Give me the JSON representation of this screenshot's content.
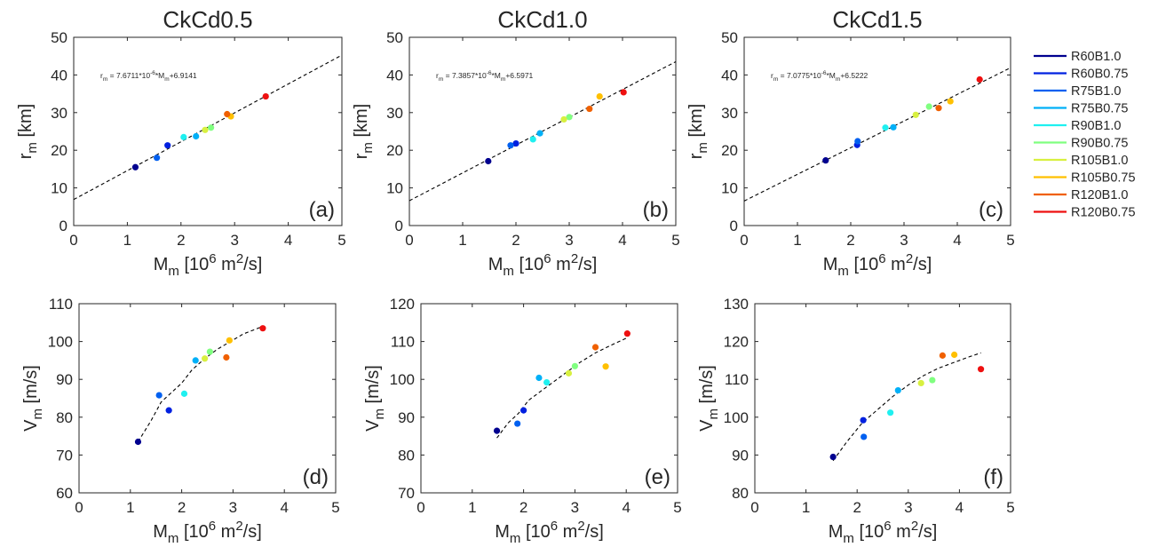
{
  "colors": {
    "R60B1.0": "#00008f",
    "R60B0.75": "#0020e0",
    "R75B1.0": "#0060f0",
    "R75B0.75": "#00b0f8",
    "R90B1.0": "#1ff0f0",
    "R90B0.75": "#80ff80",
    "R105B1.0": "#d8f040",
    "R105B0.75": "#ffc000",
    "R120B1.0": "#f06000",
    "R120B0.75": "#ee1010"
  },
  "legend": [
    "R60B1.0",
    "R60B0.75",
    "R75B1.0",
    "R75B0.75",
    "R90B1.0",
    "R90B0.75",
    "R105B1.0",
    "R105B0.75",
    "R120B1.0",
    "R120B0.75"
  ],
  "chart_data": [
    {
      "type": "scatter",
      "panel": "a",
      "title": "CkCd0.5",
      "panel_label": "(a)",
      "xlabel": "M_m [10^6 m^2/s]",
      "ylabel": "r_m [km]",
      "xlim": [
        0,
        5
      ],
      "ylim": [
        0,
        50
      ],
      "xticks": [
        0,
        1,
        2,
        3,
        4,
        5
      ],
      "yticks": [
        0,
        10,
        20,
        30,
        40,
        50
      ],
      "fit": {
        "slope": 7.6711,
        "intercept": 6.9141,
        "x_range": [
          0,
          5
        ],
        "label_base": "r",
        "label_sub": "m",
        "label_mid": " = 7.6711*10",
        "label_sup": "-6",
        "label_mid2": "*M",
        "label_sub2": "m",
        "label_end": "+6.9141"
      },
      "points": [
        {
          "series": "R60B1.0",
          "x": 1.15,
          "y": 15.5
        },
        {
          "series": "R60B0.75",
          "x": 1.75,
          "y": 21.3
        },
        {
          "series": "R75B1.0",
          "x": 1.55,
          "y": 18.0
        },
        {
          "series": "R75B0.75",
          "x": 2.28,
          "y": 23.7
        },
        {
          "series": "R90B1.0",
          "x": 2.05,
          "y": 23.5
        },
        {
          "series": "R90B0.75",
          "x": 2.56,
          "y": 26.0
        },
        {
          "series": "R105B1.0",
          "x": 2.45,
          "y": 25.4
        },
        {
          "series": "R105B0.75",
          "x": 2.93,
          "y": 29.0
        },
        {
          "series": "R120B1.0",
          "x": 2.86,
          "y": 29.6
        },
        {
          "series": "R120B0.75",
          "x": 3.58,
          "y": 34.3
        }
      ]
    },
    {
      "type": "scatter",
      "panel": "b",
      "title": "CkCd1.0",
      "panel_label": "(b)",
      "xlabel": "M_m [10^6 m^2/s]",
      "ylabel": "r_m [km]",
      "xlim": [
        0,
        5
      ],
      "ylim": [
        0,
        50
      ],
      "xticks": [
        0,
        1,
        2,
        3,
        4,
        5
      ],
      "yticks": [
        0,
        10,
        20,
        30,
        40,
        50
      ],
      "fit": {
        "slope": 7.3857,
        "intercept": 6.5971,
        "x_range": [
          0,
          5
        ],
        "label_base": "r",
        "label_sub": "m",
        "label_mid": " = 7.3857*10",
        "label_sup": "-6",
        "label_mid2": "*M",
        "label_sub2": "m",
        "label_end": "+6.5971"
      },
      "points": [
        {
          "series": "R60B1.0",
          "x": 1.48,
          "y": 17.1
        },
        {
          "series": "R60B0.75",
          "x": 2.0,
          "y": 21.8
        },
        {
          "series": "R75B1.0",
          "x": 1.9,
          "y": 21.3
        },
        {
          "series": "R75B0.75",
          "x": 2.45,
          "y": 24.5
        },
        {
          "series": "R90B1.0",
          "x": 2.32,
          "y": 22.9
        },
        {
          "series": "R90B0.75",
          "x": 3.0,
          "y": 28.8
        },
        {
          "series": "R105B1.0",
          "x": 2.9,
          "y": 28.2
        },
        {
          "series": "R105B0.75",
          "x": 3.57,
          "y": 34.3
        },
        {
          "series": "R120B1.0",
          "x": 3.38,
          "y": 31.0
        },
        {
          "series": "R120B0.75",
          "x": 4.02,
          "y": 35.4
        }
      ]
    },
    {
      "type": "scatter",
      "panel": "c",
      "title": "CkCd1.5",
      "panel_label": "(c)",
      "xlabel": "M_m [10^6 m^2/s]",
      "ylabel": "r_m [km]",
      "xlim": [
        0,
        5
      ],
      "ylim": [
        0,
        50
      ],
      "xticks": [
        0,
        1,
        2,
        3,
        4,
        5
      ],
      "yticks": [
        0,
        10,
        20,
        30,
        40,
        50
      ],
      "fit": {
        "slope": 7.0775,
        "intercept": 6.5222,
        "x_range": [
          0,
          5
        ],
        "label_base": "r",
        "label_sub": "m",
        "label_mid": " = 7.0775*10",
        "label_sup": "-6",
        "label_mid2": "*M",
        "label_sub2": "m",
        "label_end": "+6.5222"
      },
      "points": [
        {
          "series": "R60B1.0",
          "x": 1.53,
          "y": 17.3
        },
        {
          "series": "R60B0.75",
          "x": 2.12,
          "y": 21.4
        },
        {
          "series": "R75B1.0",
          "x": 2.13,
          "y": 22.4
        },
        {
          "series": "R75B0.75",
          "x": 2.8,
          "y": 26.1
        },
        {
          "series": "R90B1.0",
          "x": 2.65,
          "y": 26.0
        },
        {
          "series": "R90B0.75",
          "x": 3.47,
          "y": 31.6
        },
        {
          "series": "R105B1.0",
          "x": 3.22,
          "y": 29.4
        },
        {
          "series": "R105B0.75",
          "x": 3.87,
          "y": 33.0
        },
        {
          "series": "R120B1.0",
          "x": 3.65,
          "y": 31.2
        },
        {
          "series": "R120B0.75",
          "x": 4.42,
          "y": 38.8
        }
      ]
    },
    {
      "type": "scatter",
      "panel": "d",
      "panel_label": "(d)",
      "xlabel": "M_m [10^6 m^2/s]",
      "ylabel": "V_m [m/s]",
      "xlim": [
        0,
        5
      ],
      "ylim": [
        60,
        110
      ],
      "xticks": [
        0,
        1,
        2,
        3,
        4,
        5
      ],
      "yticks": [
        60,
        70,
        80,
        90,
        100,
        110
      ],
      "curve": {
        "x": [
          1.15,
          1.4,
          1.6,
          1.8,
          2.0,
          2.2,
          2.45,
          2.7,
          2.95,
          3.2,
          3.58
        ],
        "y": [
          73.5,
          79.0,
          84.0,
          86.5,
          89.0,
          92.5,
          95.5,
          98.0,
          100.0,
          102.0,
          104.0
        ]
      },
      "points": [
        {
          "series": "R60B1.0",
          "x": 1.15,
          "y": 73.5
        },
        {
          "series": "R60B0.75",
          "x": 1.75,
          "y": 81.8
        },
        {
          "series": "R75B1.0",
          "x": 1.56,
          "y": 85.8
        },
        {
          "series": "R75B0.75",
          "x": 2.27,
          "y": 95.0
        },
        {
          "series": "R90B1.0",
          "x": 2.05,
          "y": 86.2
        },
        {
          "series": "R90B0.75",
          "x": 2.55,
          "y": 97.3
        },
        {
          "series": "R105B1.0",
          "x": 2.45,
          "y": 95.5
        },
        {
          "series": "R105B0.75",
          "x": 2.93,
          "y": 100.3
        },
        {
          "series": "R120B1.0",
          "x": 2.87,
          "y": 95.8
        },
        {
          "series": "R120B0.75",
          "x": 3.58,
          "y": 103.5
        }
      ]
    },
    {
      "type": "scatter",
      "panel": "e",
      "panel_label": "(e)",
      "xlabel": "M_m [10^6 m^2/s]",
      "ylabel": "V_m [m/s]",
      "xlim": [
        0,
        5
      ],
      "ylim": [
        70,
        120
      ],
      "xticks": [
        0,
        1,
        2,
        3,
        4,
        5
      ],
      "yticks": [
        70,
        80,
        90,
        100,
        110,
        120
      ],
      "curve": {
        "x": [
          1.48,
          1.7,
          1.9,
          2.1,
          2.35,
          2.6,
          2.85,
          3.1,
          3.4,
          3.7,
          4.02
        ],
        "y": [
          84.5,
          88.5,
          91.0,
          94.5,
          97.0,
          99.5,
          102.0,
          104.5,
          107.0,
          109.0,
          111.0
        ]
      },
      "points": [
        {
          "series": "R60B1.0",
          "x": 1.48,
          "y": 86.4
        },
        {
          "series": "R60B0.75",
          "x": 2.0,
          "y": 91.8
        },
        {
          "series": "R75B1.0",
          "x": 1.88,
          "y": 88.3
        },
        {
          "series": "R75B0.75",
          "x": 2.3,
          "y": 100.4
        },
        {
          "series": "R90B1.0",
          "x": 2.45,
          "y": 99.2
        },
        {
          "series": "R90B0.75",
          "x": 3.0,
          "y": 103.5
        },
        {
          "series": "R105B1.0",
          "x": 2.88,
          "y": 101.6
        },
        {
          "series": "R105B0.75",
          "x": 3.6,
          "y": 103.4
        },
        {
          "series": "R120B1.0",
          "x": 3.4,
          "y": 108.5
        },
        {
          "series": "R120B0.75",
          "x": 4.02,
          "y": 112.1
        }
      ]
    },
    {
      "type": "scatter",
      "panel": "f",
      "panel_label": "(f)",
      "xlabel": "M_m [10^6 m^2/s]",
      "ylabel": "V_m [m/s]",
      "xlim": [
        0,
        5
      ],
      "ylim": [
        80,
        130
      ],
      "xticks": [
        0,
        1,
        2,
        3,
        4,
        5
      ],
      "yticks": [
        80,
        90,
        100,
        110,
        120,
        130
      ],
      "curve": {
        "x": [
          1.53,
          1.8,
          2.1,
          2.4,
          2.7,
          3.0,
          3.3,
          3.6,
          3.9,
          4.2,
          4.42
        ],
        "y": [
          88.5,
          93.5,
          98.5,
          102.0,
          105.5,
          108.5,
          111.0,
          113.0,
          114.5,
          116.0,
          117.0
        ]
      },
      "points": [
        {
          "series": "R60B1.0",
          "x": 1.53,
          "y": 89.5
        },
        {
          "series": "R60B0.75",
          "x": 2.12,
          "y": 99.2
        },
        {
          "series": "R75B1.0",
          "x": 2.13,
          "y": 94.8
        },
        {
          "series": "R75B0.75",
          "x": 2.8,
          "y": 107.1
        },
        {
          "series": "R90B1.0",
          "x": 2.65,
          "y": 101.2
        },
        {
          "series": "R90B0.75",
          "x": 3.47,
          "y": 109.8
        },
        {
          "series": "R105B1.0",
          "x": 3.25,
          "y": 109.0
        },
        {
          "series": "R105B0.75",
          "x": 3.9,
          "y": 116.5
        },
        {
          "series": "R120B1.0",
          "x": 3.67,
          "y": 116.3
        },
        {
          "series": "R120B0.75",
          "x": 4.42,
          "y": 112.7
        }
      ]
    }
  ]
}
